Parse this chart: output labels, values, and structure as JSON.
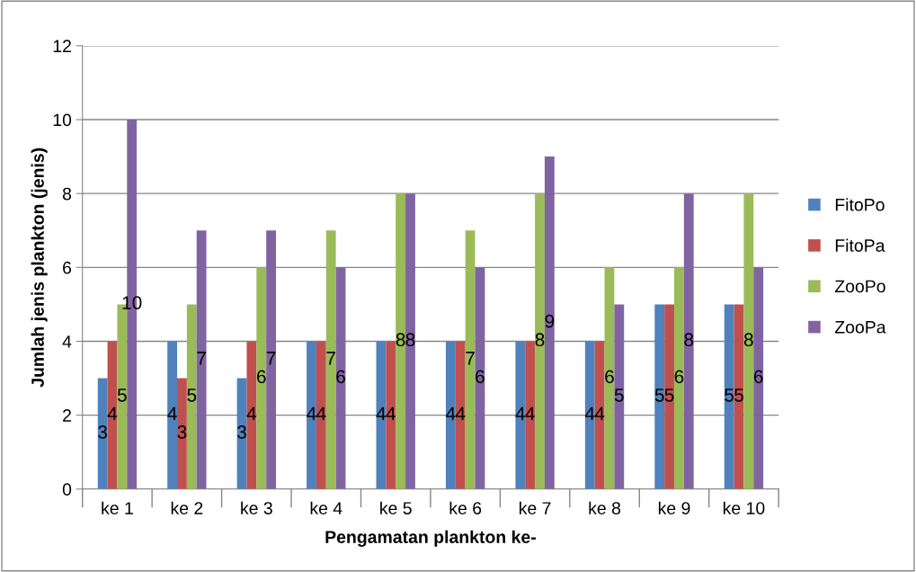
{
  "chart_data": {
    "type": "bar",
    "xlabel": "Pengamatan plankton ke-",
    "ylabel": "Jumlah jenis plankton (jenis)",
    "categories": [
      "ke 1",
      "ke 2",
      "ke 3",
      "ke 4",
      "ke 5",
      "ke 6",
      "ke 7",
      "ke 8",
      "ke 9",
      "ke 10"
    ],
    "series": [
      {
        "name": "FitoPo",
        "color": "#4f81bd",
        "values": [
          3,
          4,
          3,
          4,
          4,
          4,
          4,
          4,
          5,
          5
        ]
      },
      {
        "name": "FitoPa",
        "color": "#c0504d",
        "values": [
          4,
          3,
          4,
          4,
          4,
          4,
          4,
          4,
          5,
          5
        ]
      },
      {
        "name": "ZooPo",
        "color": "#9bbb59",
        "values": [
          5,
          5,
          6,
          7,
          8,
          7,
          8,
          6,
          6,
          8
        ]
      },
      {
        "name": "ZooPa",
        "color": "#8064a2",
        "values": [
          10,
          7,
          7,
          6,
          8,
          6,
          9,
          5,
          8,
          6
        ]
      }
    ],
    "ylim": [
      0,
      12
    ],
    "yticks": [
      0,
      2,
      4,
      6,
      8,
      10,
      12
    ],
    "grid": "y",
    "legend": "right",
    "data_labels": true
  }
}
